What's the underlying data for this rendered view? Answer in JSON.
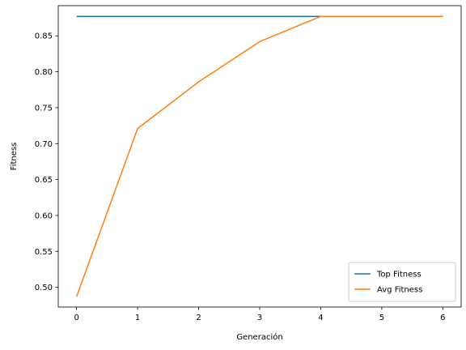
{
  "chart_data": {
    "type": "line",
    "title": "",
    "xlabel": "Generación",
    "ylabel": "Fitness",
    "x": [
      0,
      1,
      2,
      3,
      4,
      5,
      6
    ],
    "xlim": [
      -0.3,
      6.3
    ],
    "ylim": [
      0.4725,
      0.892
    ],
    "xticks": [
      0,
      1,
      2,
      3,
      4,
      5,
      6
    ],
    "yticks": [
      0.5,
      0.55,
      0.6,
      0.65,
      0.7,
      0.75,
      0.8,
      0.85
    ],
    "ytick_labels": [
      "0.50",
      "0.55",
      "0.60",
      "0.65",
      "0.70",
      "0.75",
      "0.80",
      "0.85"
    ],
    "grid": false,
    "legend_position": "lower-right",
    "series": [
      {
        "name": "Top Fitness",
        "color": "#1f77b4",
        "values": [
          0.877,
          0.877,
          0.877,
          0.877,
          0.877,
          0.877,
          0.877
        ]
      },
      {
        "name": "Avg Fitness",
        "color": "#ff7f0e",
        "values": [
          0.487,
          0.721,
          0.786,
          0.842,
          0.877,
          0.877,
          0.877
        ]
      }
    ]
  }
}
